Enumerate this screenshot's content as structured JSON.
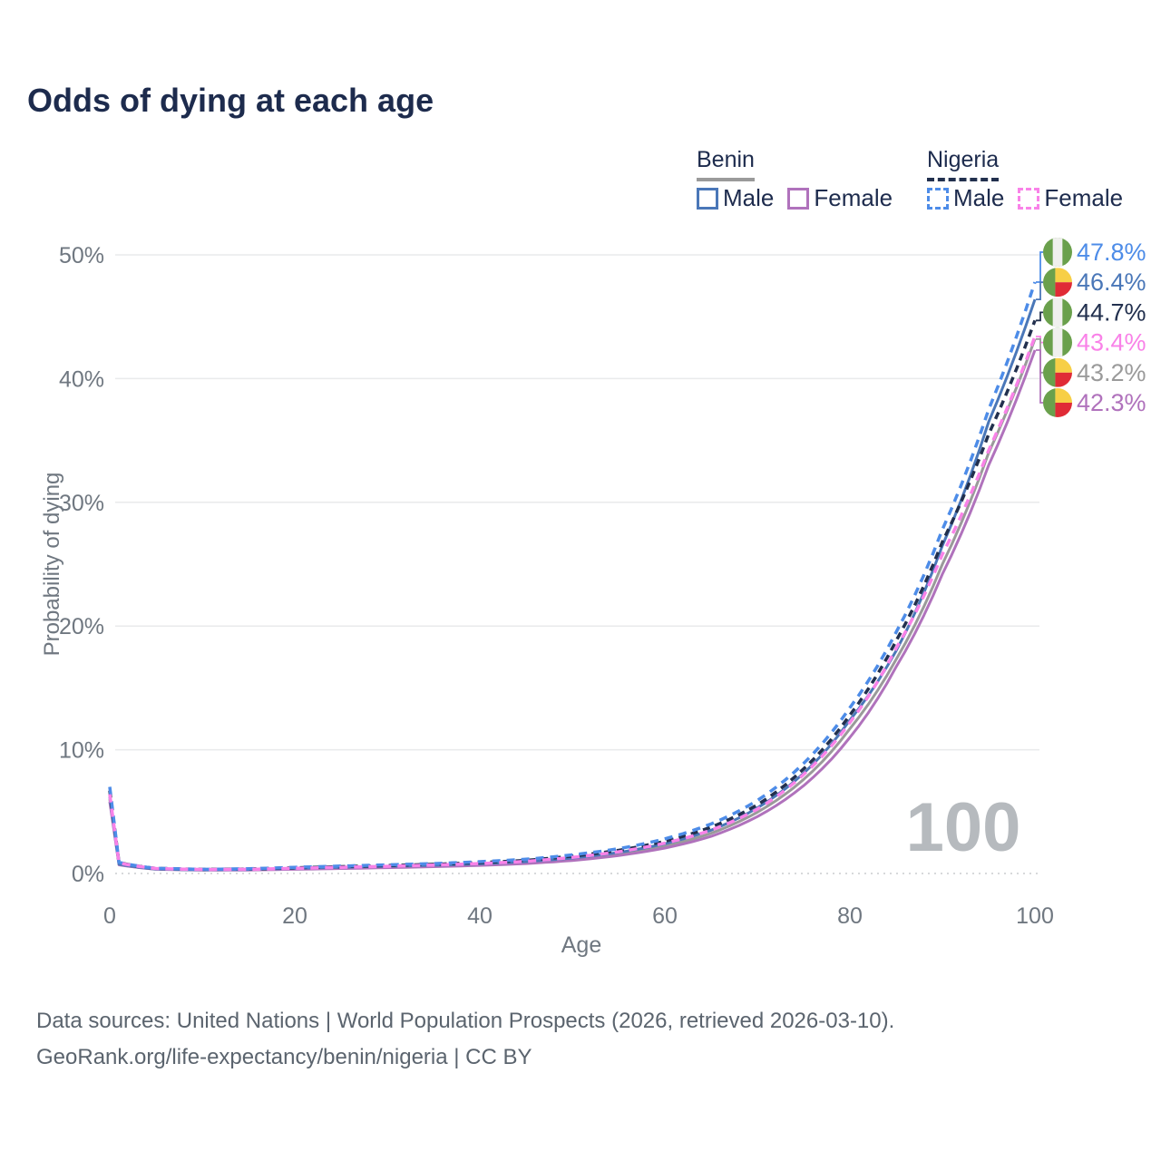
{
  "title": "Odds of dying at each age",
  "footer": {
    "line1": "Data sources: United Nations | World Population Prospects (2026, retrieved 2026-03-10).",
    "line2": "GeoRank.org/life-expectancy/benin/nigeria | CC BY"
  },
  "legend": {
    "groups": [
      {
        "label": "Benin",
        "underline_style": "solid",
        "underline_color": "#9a9a9a",
        "items": [
          {
            "label": "Male",
            "color": "#4a77b8",
            "dashed": false
          },
          {
            "label": "Female",
            "color": "#b072bc",
            "dashed": false
          }
        ]
      },
      {
        "label": "Nigeria",
        "underline_style": "dashed",
        "underline_color": "#22304e",
        "items": [
          {
            "label": "Male",
            "color": "#4d8ce8",
            "dashed": true
          },
          {
            "label": "Female",
            "color": "#f982e8",
            "dashed": true
          }
        ]
      }
    ]
  },
  "watermark": "100",
  "chart_data": {
    "type": "line",
    "title": "Odds of dying at each age",
    "xlabel": "Age",
    "ylabel": "Probability of dying",
    "xlim": [
      0,
      100
    ],
    "ylim": [
      0,
      50
    ],
    "grid": true,
    "legend_position": "top-right",
    "x_ticks": [
      0,
      20,
      40,
      60,
      80,
      100
    ],
    "y_ticks": [
      {
        "value": 0,
        "label": "0%"
      },
      {
        "value": 10,
        "label": "10%"
      },
      {
        "value": 20,
        "label": "20%"
      },
      {
        "value": 30,
        "label": "30%"
      },
      {
        "value": 40,
        "label": "40%"
      },
      {
        "value": 50,
        "label": "50%"
      }
    ],
    "x": [
      0,
      1,
      5,
      10,
      15,
      20,
      25,
      30,
      35,
      40,
      45,
      50,
      55,
      60,
      65,
      70,
      75,
      80,
      85,
      90,
      95,
      100
    ],
    "series": [
      {
        "name": "Benin Male",
        "key": "benin_male",
        "country": "benin",
        "flag": "benin",
        "style": "solid",
        "color": "#4a77b8",
        "end_label": "46.4%",
        "values": [
          6.2,
          0.75,
          0.36,
          0.29,
          0.32,
          0.42,
          0.5,
          0.58,
          0.66,
          0.78,
          0.95,
          1.25,
          1.7,
          2.4,
          3.5,
          5.3,
          8.1,
          12.4,
          18.0,
          26.5,
          36.5,
          46.4
        ]
      },
      {
        "name": "Benin Female",
        "key": "benin_female",
        "country": "benin",
        "flag": "benin",
        "style": "solid",
        "color": "#b072bc",
        "end_label": "42.3%",
        "values": [
          5.8,
          0.7,
          0.34,
          0.27,
          0.28,
          0.34,
          0.4,
          0.47,
          0.55,
          0.65,
          0.8,
          1.05,
          1.45,
          2.05,
          3.0,
          4.6,
          7.1,
          11.0,
          16.7,
          24.2,
          33.0,
          42.3
        ]
      },
      {
        "name": "Benin Both sexes",
        "key": "benin_total",
        "country": "benin",
        "flag": "benin",
        "style": "solid",
        "color": "#9a9a9a",
        "end_label": "43.2%",
        "values": [
          6.0,
          0.72,
          0.35,
          0.28,
          0.3,
          0.38,
          0.45,
          0.52,
          0.6,
          0.71,
          0.87,
          1.15,
          1.57,
          2.2,
          3.25,
          4.95,
          7.6,
          11.7,
          17.3,
          25.0,
          34.0,
          43.2
        ]
      },
      {
        "name": "Nigeria Male",
        "key": "nigeria_male",
        "country": "nigeria",
        "flag": "nigeria",
        "style": "dashed",
        "color": "#4d8ce8",
        "end_label": "47.8%",
        "values": [
          7.0,
          0.9,
          0.42,
          0.34,
          0.38,
          0.5,
          0.6,
          0.7,
          0.8,
          0.95,
          1.15,
          1.5,
          2.0,
          2.8,
          4.0,
          5.9,
          8.9,
          13.4,
          19.5,
          27.8,
          37.5,
          47.8
        ]
      },
      {
        "name": "Nigeria Female",
        "key": "nigeria_female",
        "country": "nigeria",
        "flag": "nigeria",
        "style": "dashed",
        "color": "#f982e8",
        "end_label": "43.4%",
        "values": [
          6.4,
          0.85,
          0.4,
          0.32,
          0.34,
          0.42,
          0.5,
          0.58,
          0.68,
          0.8,
          0.98,
          1.3,
          1.75,
          2.45,
          3.5,
          5.2,
          8.0,
          12.2,
          18.2,
          25.8,
          34.2,
          43.4
        ]
      },
      {
        "name": "Nigeria Both sexes",
        "key": "nigeria_total",
        "country": "nigeria",
        "flag": "nigeria",
        "style": "dashed",
        "color": "#22304e",
        "end_label": "44.7%",
        "values": [
          6.7,
          0.88,
          0.41,
          0.33,
          0.36,
          0.46,
          0.55,
          0.64,
          0.74,
          0.88,
          1.06,
          1.4,
          1.87,
          2.6,
          3.75,
          5.55,
          8.45,
          12.8,
          18.8,
          26.8,
          35.5,
          44.7
        ]
      }
    ],
    "flag_colors": {
      "nigeria": {
        "green": "#6aa04c",
        "white": "#f0f0ee"
      },
      "benin": {
        "green": "#6aa04c",
        "yellow": "#f7cf46",
        "red": "#e02b36"
      }
    }
  }
}
